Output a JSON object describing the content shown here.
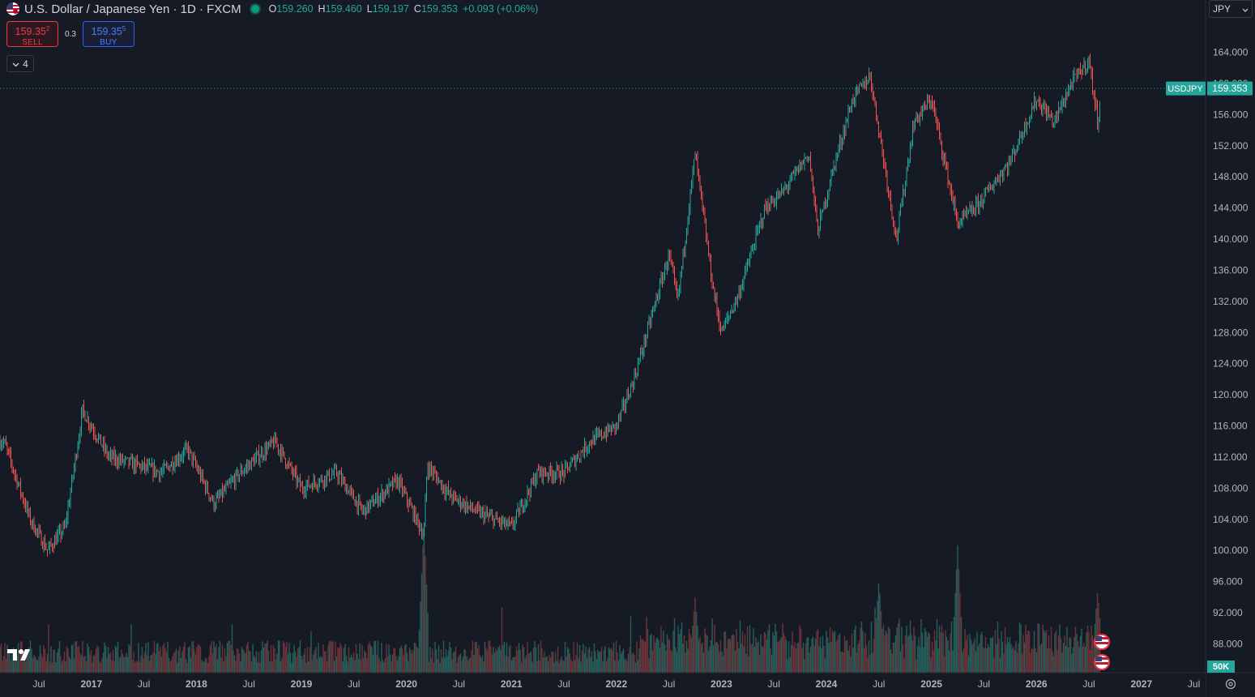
{
  "header": {
    "title": "U.S. Dollar / Japanese Yen · 1D · FXCM",
    "ohlc": {
      "o_label": "O",
      "o": "159.260",
      "h_label": "H",
      "h": "159.460",
      "l_label": "L",
      "l": "159.197",
      "c_label": "C",
      "c": "159.353",
      "change": "+0.093 (+0.06%)"
    }
  },
  "trade": {
    "sell_price": "159.35",
    "sell_sup": "2",
    "sell_label": "SELL",
    "spread": "0.3",
    "buy_price": "159.35",
    "buy_sup": "5",
    "buy_label": "BUY"
  },
  "indicators_toggle": {
    "count": "4"
  },
  "currency_select": {
    "value": "JPY"
  },
  "colors": {
    "up": "#26a69a",
    "down": "#ef5350",
    "background": "#161a25",
    "price_line": "#26a69a"
  },
  "chart_data": {
    "type": "candlestick",
    "symbol": "USDJPY",
    "last_price": 159.353,
    "price_label": "USDJPY",
    "price_value": "159.353",
    "y_ticks": [
      "164.000",
      "160.000",
      "156.000",
      "152.000",
      "148.000",
      "144.000",
      "140.000",
      "136.000",
      "132.000",
      "128.000",
      "124.000",
      "120.000",
      "116.000",
      "112.000",
      "108.000",
      "104.000",
      "100.000",
      "96.000",
      "92.000",
      "88.000"
    ],
    "y_range": [
      86,
      166
    ],
    "x_ticks": [
      "Jul",
      "2017",
      "Jul",
      "2018",
      "Jul",
      "2019",
      "Jul",
      "2020",
      "Jul",
      "2021",
      "Jul",
      "2022",
      "Jul",
      "2023",
      "Jul",
      "2024",
      "Jul",
      "2025",
      "Jul",
      "2026",
      "Jul",
      "2027",
      "Jul"
    ],
    "x_range": [
      "2016-03",
      "2027-09"
    ],
    "price_path": [
      [
        "2016-03",
        114
      ],
      [
        "2016-06",
        104
      ],
      [
        "2016-08",
        100
      ],
      [
        "2016-10",
        103
      ],
      [
        "2016-12",
        118
      ],
      [
        "2017-03",
        112
      ],
      [
        "2017-06",
        111
      ],
      [
        "2017-09",
        110
      ],
      [
        "2017-12",
        113
      ],
      [
        "2018-03",
        106
      ],
      [
        "2018-06",
        110
      ],
      [
        "2018-10",
        114
      ],
      [
        "2019-01",
        108
      ],
      [
        "2019-05",
        110
      ],
      [
        "2019-08",
        105
      ],
      [
        "2019-12",
        109
      ],
      [
        "2020-03",
        102
      ],
      [
        "2020-03",
        111
      ],
      [
        "2020-06",
        107
      ],
      [
        "2020-09",
        105
      ],
      [
        "2021-01",
        103
      ],
      [
        "2021-04",
        110
      ],
      [
        "2021-07",
        110
      ],
      [
        "2021-10",
        114
      ],
      [
        "2022-01",
        116
      ],
      [
        "2022-03",
        122
      ],
      [
        "2022-05",
        130
      ],
      [
        "2022-07",
        138
      ],
      [
        "2022-08",
        132
      ],
      [
        "2022-10",
        151
      ],
      [
        "2022-12",
        134
      ],
      [
        "2023-01",
        128
      ],
      [
        "2023-03",
        133
      ],
      [
        "2023-06",
        144
      ],
      [
        "2023-08",
        146
      ],
      [
        "2023-11",
        151
      ],
      [
        "2023-12",
        141
      ],
      [
        "2024-02",
        150
      ],
      [
        "2024-04",
        158
      ],
      [
        "2024-06",
        161
      ],
      [
        "2024-09",
        140
      ],
      [
        "2024-11",
        155
      ],
      [
        "2025-01",
        158
      ],
      [
        "2025-04",
        142
      ],
      [
        "2025-06",
        144
      ],
      [
        "2025-08",
        147
      ],
      [
        "2025-10",
        150
      ],
      [
        "2026-01",
        158
      ],
      [
        "2026-03",
        155
      ],
      [
        "2026-05",
        160
      ],
      [
        "2026-07",
        163
      ],
      [
        "2026-08",
        155
      ],
      [
        "2026-08",
        159.353
      ]
    ],
    "volume_label": "50K",
    "volume_spikes": [
      [
        "2020-03",
        1.0
      ],
      [
        "2024-07",
        0.62
      ],
      [
        "2025-04",
        0.85
      ],
      [
        "2022-10",
        0.5
      ],
      [
        "2026-08",
        0.55
      ]
    ]
  }
}
